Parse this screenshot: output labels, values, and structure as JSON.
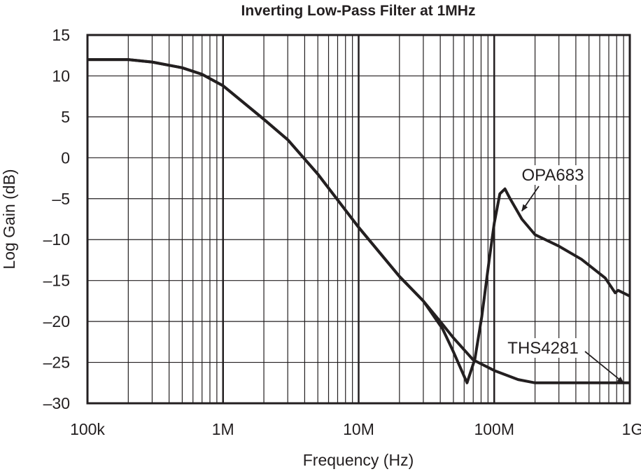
{
  "chart_data": {
    "type": "line",
    "title": "Inverting Low-Pass Filter at 1MHz",
    "xlabel": "Frequency (Hz)",
    "ylabel": "Log Gain (dB)",
    "xscale": "log",
    "xlim": [
      100000,
      1000000000
    ],
    "ylim": [
      -30,
      15
    ],
    "grid": true,
    "x_ticks": [
      {
        "value": 100000,
        "label": "100k"
      },
      {
        "value": 1000000,
        "label": "1M"
      },
      {
        "value": 10000000,
        "label": "10M"
      },
      {
        "value": 100000000,
        "label": "100M"
      },
      {
        "value": 1000000000,
        "label": "1G"
      }
    ],
    "y_ticks": [
      {
        "value": 15,
        "label": "15"
      },
      {
        "value": 10,
        "label": "10"
      },
      {
        "value": 5,
        "label": "5"
      },
      {
        "value": 0,
        "label": "0"
      },
      {
        "value": -5,
        "label": "–5"
      },
      {
        "value": -10,
        "label": "–10"
      },
      {
        "value": -15,
        "label": "–15"
      },
      {
        "value": -20,
        "label": "–20"
      },
      {
        "value": -25,
        "label": "–25"
      },
      {
        "value": -30,
        "label": "–30"
      }
    ],
    "line_color": "#231f20",
    "series": [
      {
        "name": "OPA683",
        "x": [
          100000,
          200000,
          300000,
          500000,
          700000,
          1000000,
          2000000,
          3000000,
          5000000,
          10000000,
          20000000,
          30000000,
          41600000,
          50000000,
          63000000,
          72000000,
          81000000,
          92000000,
          100000000,
          110000000,
          120000000,
          130000000,
          160000000,
          200000000,
          300000000,
          440000000,
          660000000,
          780000000,
          820000000,
          1000000000
        ],
        "y": [
          12,
          12,
          11.7,
          11,
          10.2,
          8.8,
          4.7,
          2.2,
          -2,
          -8.5,
          -14.5,
          -17.5,
          -20.9,
          -23.7,
          -27.5,
          -24.6,
          -19.4,
          -12.4,
          -8,
          -4.4,
          -3.8,
          -4.9,
          -7.5,
          -9.4,
          -10.8,
          -12.4,
          -14.7,
          -16.5,
          -16.2,
          -16.9
        ]
      },
      {
        "name": "THS4281",
        "x": [
          100000,
          200000,
          300000,
          500000,
          700000,
          1000000,
          2000000,
          3000000,
          5000000,
          10000000,
          20000000,
          30000000,
          40000000,
          50000000,
          70000000,
          100000000,
          150000000,
          200000000,
          1000000000
        ],
        "y": [
          12,
          12,
          11.7,
          11,
          10.2,
          8.8,
          4.7,
          2.2,
          -2,
          -8.5,
          -14.5,
          -17.5,
          -20,
          -22,
          -24.7,
          -26,
          -27.1,
          -27.5,
          -27.5
        ]
      }
    ],
    "annotations": [
      {
        "text": "OPA683",
        "points_to": {
          "x": 160000000,
          "y": -6.5
        }
      },
      {
        "text": "THS4281",
        "points_to": {
          "x": 900000000,
          "y": -27.5
        }
      }
    ]
  }
}
